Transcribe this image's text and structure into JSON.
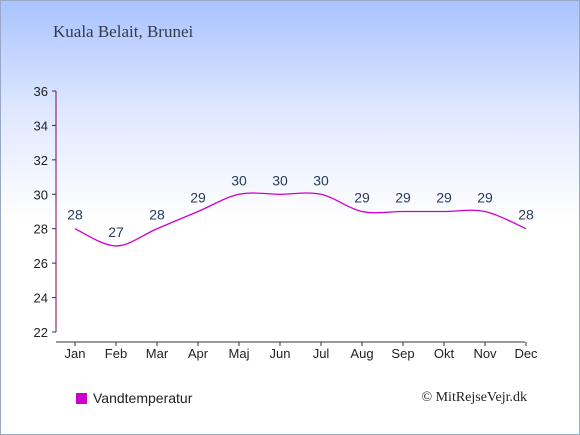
{
  "location": "Kuala Belait, Brunei",
  "legend": {
    "label": "Vandtemperatur",
    "color": "#cc00cc"
  },
  "credit": "© MitRejseVejr.dk",
  "chart_data": {
    "type": "line",
    "categories": [
      "Jan",
      "Feb",
      "Mar",
      "Apr",
      "Maj",
      "Jun",
      "Jul",
      "Aug",
      "Sep",
      "Okt",
      "Nov",
      "Dec"
    ],
    "series": [
      {
        "name": "Vandtemperatur",
        "values": [
          28,
          27,
          28,
          29,
          30,
          30,
          30,
          29,
          29,
          29,
          29,
          28
        ],
        "color": "#cc00cc"
      }
    ],
    "data_labels": [
      "28",
      "27",
      "28",
      "29",
      "30",
      "30",
      "30",
      "29",
      "29",
      "29",
      "29",
      "28"
    ],
    "yticks": [
      22,
      24,
      26,
      28,
      30,
      32,
      34,
      36
    ],
    "ylim": [
      22,
      36
    ],
    "grid": false,
    "legend_position": "bottom-left"
  }
}
